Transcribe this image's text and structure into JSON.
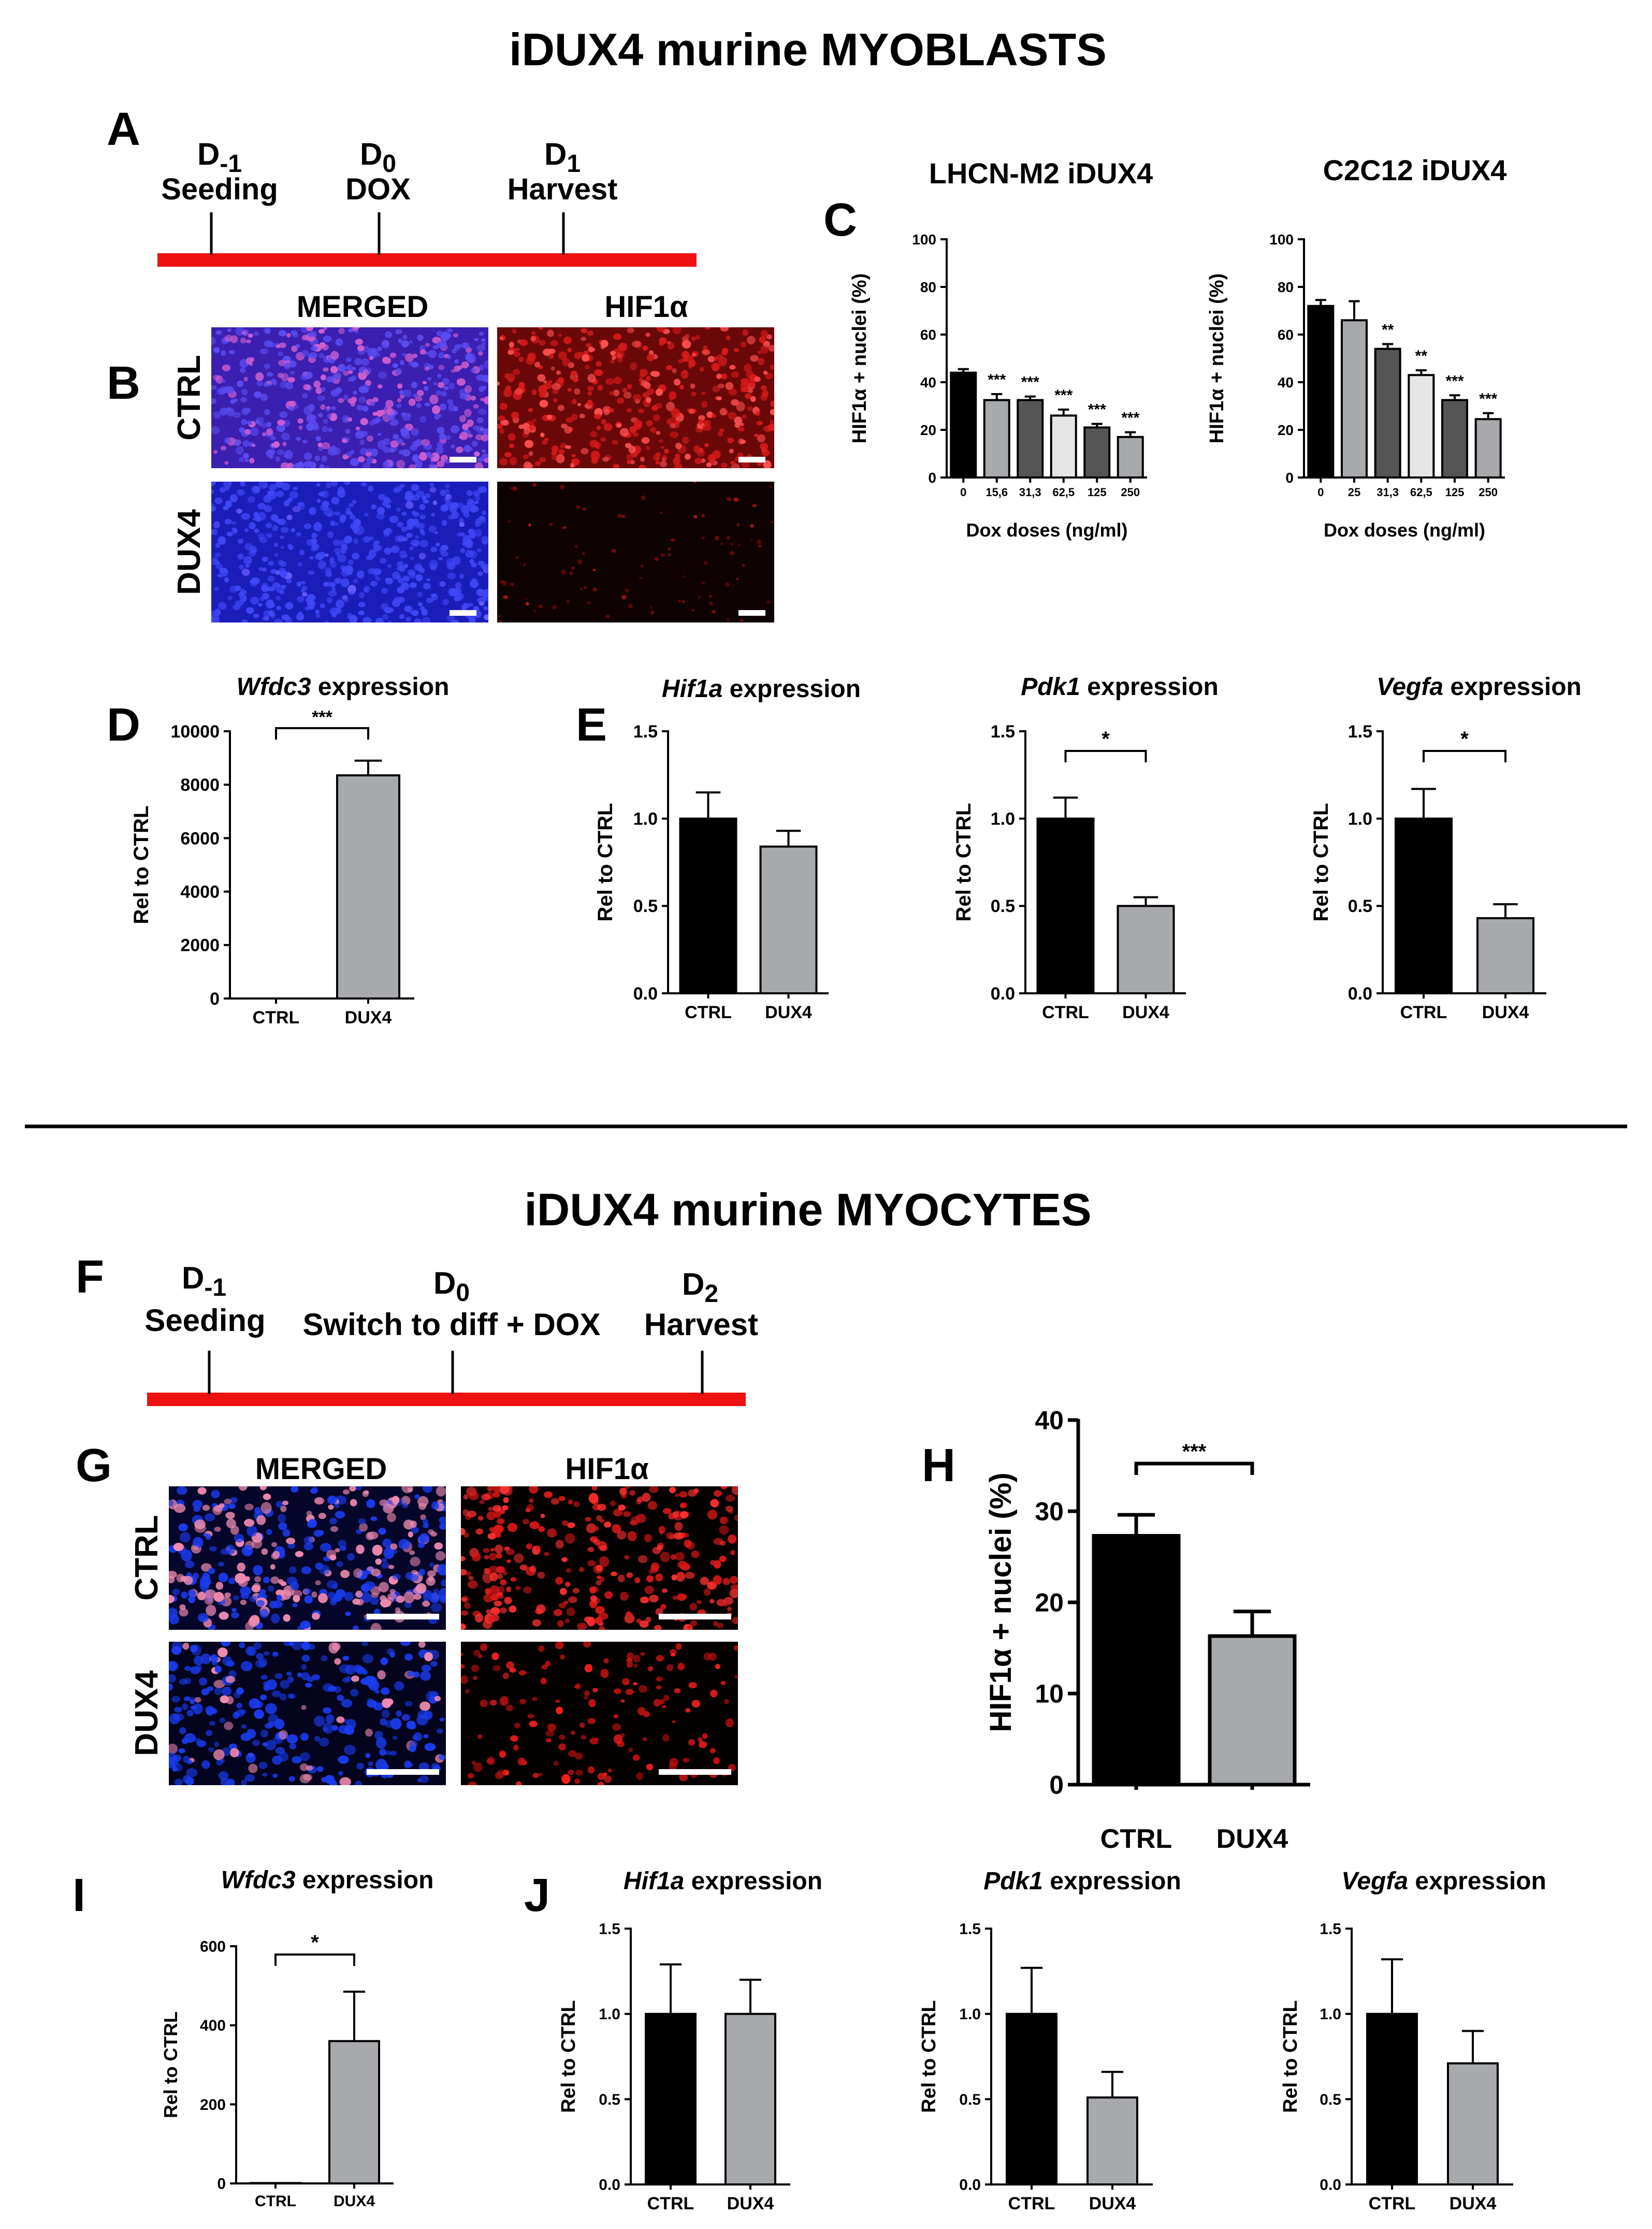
{
  "sections": {
    "myoblasts_title": "iDUX4 murine MYOBLASTS",
    "myocytes_title": "iDUX4 murine MYOCYTES"
  },
  "panels": {
    "A": "A",
    "B": "B",
    "C": "C",
    "D": "D",
    "E": "E",
    "F": "F",
    "G": "G",
    "H": "H",
    "I": "I",
    "J": "J"
  },
  "timeline_A": {
    "color": "#ee1111",
    "points": [
      {
        "day": "D",
        "sub": "-1",
        "label": "Seeding"
      },
      {
        "day": "D",
        "sub": "0",
        "label": "DOX"
      },
      {
        "day": "D",
        "sub": "1",
        "label": "Harvest"
      }
    ]
  },
  "timeline_F": {
    "color": "#ee1111",
    "points": [
      {
        "day": "D",
        "sub": "-1",
        "label": "Seeding"
      },
      {
        "day": "D",
        "sub": "0",
        "label": "Switch to diff + DOX"
      },
      {
        "day": "D",
        "sub": "2",
        "label": "Harvest"
      }
    ]
  },
  "micrographs_B": {
    "columns": [
      "MERGED",
      "HIF1α"
    ],
    "rows": [
      "CTRL",
      "DUX4"
    ],
    "colors": {
      "merged_ctrl": "#3a1fb0",
      "merged_dux4": "#1b1fc4",
      "hif_ctrl": "#7a0a0a",
      "hif_dux4": "#140303",
      "nuclei_blue": "#3f3cf0",
      "nuclei_red": "#ff2a2a",
      "nuclei_pink": "#d06acb"
    }
  },
  "micrographs_G": {
    "columns": [
      "MERGED",
      "HIF1α"
    ],
    "rows": [
      "CTRL",
      "DUX4"
    ]
  },
  "colors": {
    "ctrl": "#000000",
    "dux4": "#a7a9ac",
    "dark_gray": "#555555",
    "light_gray": "#e6e6e6",
    "mid_gray": "#8c8c8c"
  },
  "chart_data": [
    {
      "id": "C1",
      "type": "bar",
      "title": "LHCN-M2 iDUX4",
      "xlabel": "Dox doses (ng/ml)",
      "ylabel": "HIF1α + nuclei (%)",
      "categories": [
        "0",
        "15,6",
        "31,3",
        "62,5",
        "125",
        "250"
      ],
      "values": [
        44,
        32.5,
        32.5,
        26,
        21,
        17
      ],
      "errors": [
        1.5,
        2.5,
        1.5,
        2.5,
        1.5,
        2
      ],
      "significance": [
        "",
        "***",
        "***",
        "***",
        "***",
        "***"
      ],
      "yticks": [
        "0",
        "20",
        "40",
        "60",
        "80",
        "100"
      ],
      "ylim": [
        0,
        100
      ]
    },
    {
      "id": "C2",
      "type": "bar",
      "title": "C2C12 iDUX4",
      "xlabel": "Dox doses (ng/ml)",
      "ylabel": "HIF1α + nuclei (%)",
      "categories": [
        "0",
        "25",
        "31,3",
        "62,5",
        "125",
        "250"
      ],
      "values": [
        72,
        66,
        54,
        43,
        32.5,
        24.5
      ],
      "errors": [
        2.5,
        8,
        2,
        2,
        2,
        2.5
      ],
      "significance": [
        "",
        "",
        "**",
        "**",
        "***",
        "***"
      ],
      "yticks": [
        "0",
        "20",
        "40",
        "60",
        "80",
        "100"
      ],
      "ylim": [
        0,
        100
      ]
    },
    {
      "id": "D",
      "type": "bar",
      "title": "Wfdc3",
      "title_suffix": "expression",
      "ylabel": "Rel to CTRL",
      "categories": [
        "CTRL",
        "DUX4"
      ],
      "values": [
        1,
        8350
      ],
      "errors": [
        0,
        550
      ],
      "significance": "***",
      "yticks": [
        "0",
        "2000",
        "4000",
        "6000",
        "8000",
        "10000"
      ],
      "ylim": [
        0,
        10000
      ]
    },
    {
      "id": "E1",
      "type": "bar",
      "title": "Hif1a",
      "title_suffix": "expression",
      "ylabel": "Rel to CTRL",
      "categories": [
        "CTRL",
        "DUX4"
      ],
      "values": [
        1.0,
        0.84
      ],
      "errors": [
        0.15,
        0.09
      ],
      "significance": "",
      "yticks": [
        "0.0",
        "0.5",
        "1.0",
        "1.5"
      ],
      "ylim": [
        0,
        1.5
      ]
    },
    {
      "id": "E2",
      "type": "bar",
      "title": "Pdk1",
      "title_suffix": "expression",
      "ylabel": "Rel to CTRL",
      "categories": [
        "CTRL",
        "DUX4"
      ],
      "values": [
        1.0,
        0.5
      ],
      "errors": [
        0.12,
        0.05
      ],
      "significance": "*",
      "yticks": [
        "0.0",
        "0.5",
        "1.0",
        "1.5"
      ],
      "ylim": [
        0,
        1.5
      ]
    },
    {
      "id": "E3",
      "type": "bar",
      "title": "Vegfa",
      "title_suffix": "expression",
      "ylabel": "Rel to CTRL",
      "categories": [
        "CTRL",
        "DUX4"
      ],
      "values": [
        1.0,
        0.43
      ],
      "errors": [
        0.17,
        0.08
      ],
      "significance": "*",
      "yticks": [
        "0.0",
        "0.5",
        "1.0",
        "1.5"
      ],
      "ylim": [
        0,
        1.5
      ]
    },
    {
      "id": "H",
      "type": "bar",
      "ylabel": "HIF1α + nuclei (%)",
      "categories": [
        "CTRL",
        "DUX4"
      ],
      "values": [
        27.3,
        16.3
      ],
      "errors": [
        2.3,
        2.7
      ],
      "significance": "***",
      "yticks": [
        "0",
        "10",
        "20",
        "30",
        "40"
      ],
      "ylim": [
        0,
        40
      ]
    },
    {
      "id": "I",
      "type": "bar",
      "title": "Wfdc3",
      "title_suffix": "expression",
      "ylabel": "Rel to CTRL",
      "categories": [
        "CTRL",
        "DUX4"
      ],
      "values": [
        1,
        360
      ],
      "errors": [
        0,
        125
      ],
      "significance": "*",
      "yticks": [
        "0",
        "200",
        "400",
        "600"
      ],
      "ylim": [
        0,
        600
      ]
    },
    {
      "id": "J1",
      "type": "bar",
      "title": "Hif1a",
      "title_suffix": "expression",
      "ylabel": "Rel to CTRL",
      "categories": [
        "CTRL",
        "DUX4"
      ],
      "values": [
        1.0,
        1.0
      ],
      "errors": [
        0.29,
        0.2
      ],
      "significance": "",
      "yticks": [
        "0.0",
        "0.5",
        "1.0",
        "1.5"
      ],
      "ylim": [
        0,
        1.5
      ]
    },
    {
      "id": "J2",
      "type": "bar",
      "title": "Pdk1",
      "title_suffix": "expression",
      "ylabel": "Rel to CTRL",
      "categories": [
        "CTRL",
        "DUX4"
      ],
      "values": [
        1.0,
        0.51
      ],
      "errors": [
        0.27,
        0.15
      ],
      "significance": "",
      "yticks": [
        "0.0",
        "0.5",
        "1.0",
        "1.5"
      ],
      "ylim": [
        0,
        1.5
      ]
    },
    {
      "id": "J3",
      "type": "bar",
      "title": "Vegfa",
      "title_suffix": "expression",
      "ylabel": "Rel to CTRL",
      "categories": [
        "CTRL",
        "DUX4"
      ],
      "values": [
        1.0,
        0.71
      ],
      "errors": [
        0.32,
        0.19
      ],
      "significance": "",
      "yticks": [
        "0.0",
        "0.5",
        "1.0",
        "1.5"
      ],
      "ylim": [
        0,
        1.5
      ]
    }
  ]
}
